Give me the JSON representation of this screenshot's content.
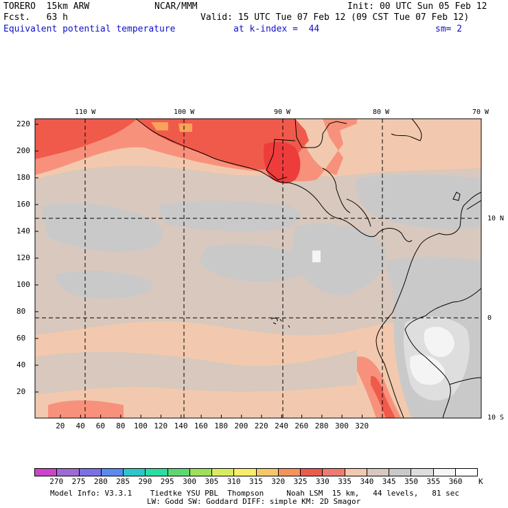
{
  "header": {
    "model": "TORERO  15km ARW",
    "center": "NCAR/MMM",
    "init": "Init: 00 UTC Sun 05 Feb 12",
    "fcst": "Fcst.   63 h",
    "valid": "Valid: 15 UTC Tue 07 Feb 12 (09 CST Tue 07 Feb 12)",
    "field": "Equivalent potential temperature",
    "kindex": "at k-index =  44",
    "sm": "sm= 2"
  },
  "map": {
    "top_lon_labels": [
      "110 W",
      "100 W",
      "90 W",
      "80 W",
      "70 W"
    ],
    "right_lat_labels": [
      "10 N",
      "0",
      "10 S"
    ],
    "left_axis": [
      "220",
      "200",
      "180",
      "160",
      "140",
      "120",
      "100",
      "80",
      "60",
      "40",
      "20"
    ],
    "bottom_axis": [
      "20",
      "40",
      "60",
      "80",
      "100",
      "120",
      "140",
      "160",
      "180",
      "200",
      "220",
      "240",
      "260",
      "280",
      "300",
      "320"
    ],
    "colors": {
      "c330": "#f05a4b",
      "c335": "#f8917b",
      "c340": "#f2c9ae",
      "c345": "#d8c8bd",
      "c350": "#c9c9c9",
      "c355": "#dedede",
      "c360": "#f4f4f4",
      "c325": "#f8a35c",
      "c320": "#f6cc66",
      "c328": "#ee3c3c"
    }
  },
  "colorbar": {
    "labels": [
      "270",
      "275",
      "280",
      "285",
      "290",
      "295",
      "300",
      "305",
      "310",
      "315",
      "320",
      "325",
      "330",
      "335",
      "340",
      "345",
      "350",
      "355",
      "360"
    ],
    "unit": "K",
    "colors": [
      "#cc44cc",
      "#a06ad6",
      "#7a70e8",
      "#5a8af0",
      "#2ac8c8",
      "#28dea0",
      "#5cd870",
      "#9ee058",
      "#d8ec5e",
      "#f8ee68",
      "#f6c66a",
      "#f5935a",
      "#ee5a4c",
      "#f07a70",
      "#f2c9ae",
      "#d8c8bd",
      "#c9c9c9",
      "#dedede",
      "#f6f6f6",
      "#ffffff"
    ]
  },
  "footer": {
    "line1": "Model Info: V3.3.1    Tiedtke YSU PBL  Thompson     Noah LSM  15 km,   44 levels,   81 sec",
    "line2": "LW: Godd SW: Goddard DIFF: simple KM: 2D Smagor"
  }
}
